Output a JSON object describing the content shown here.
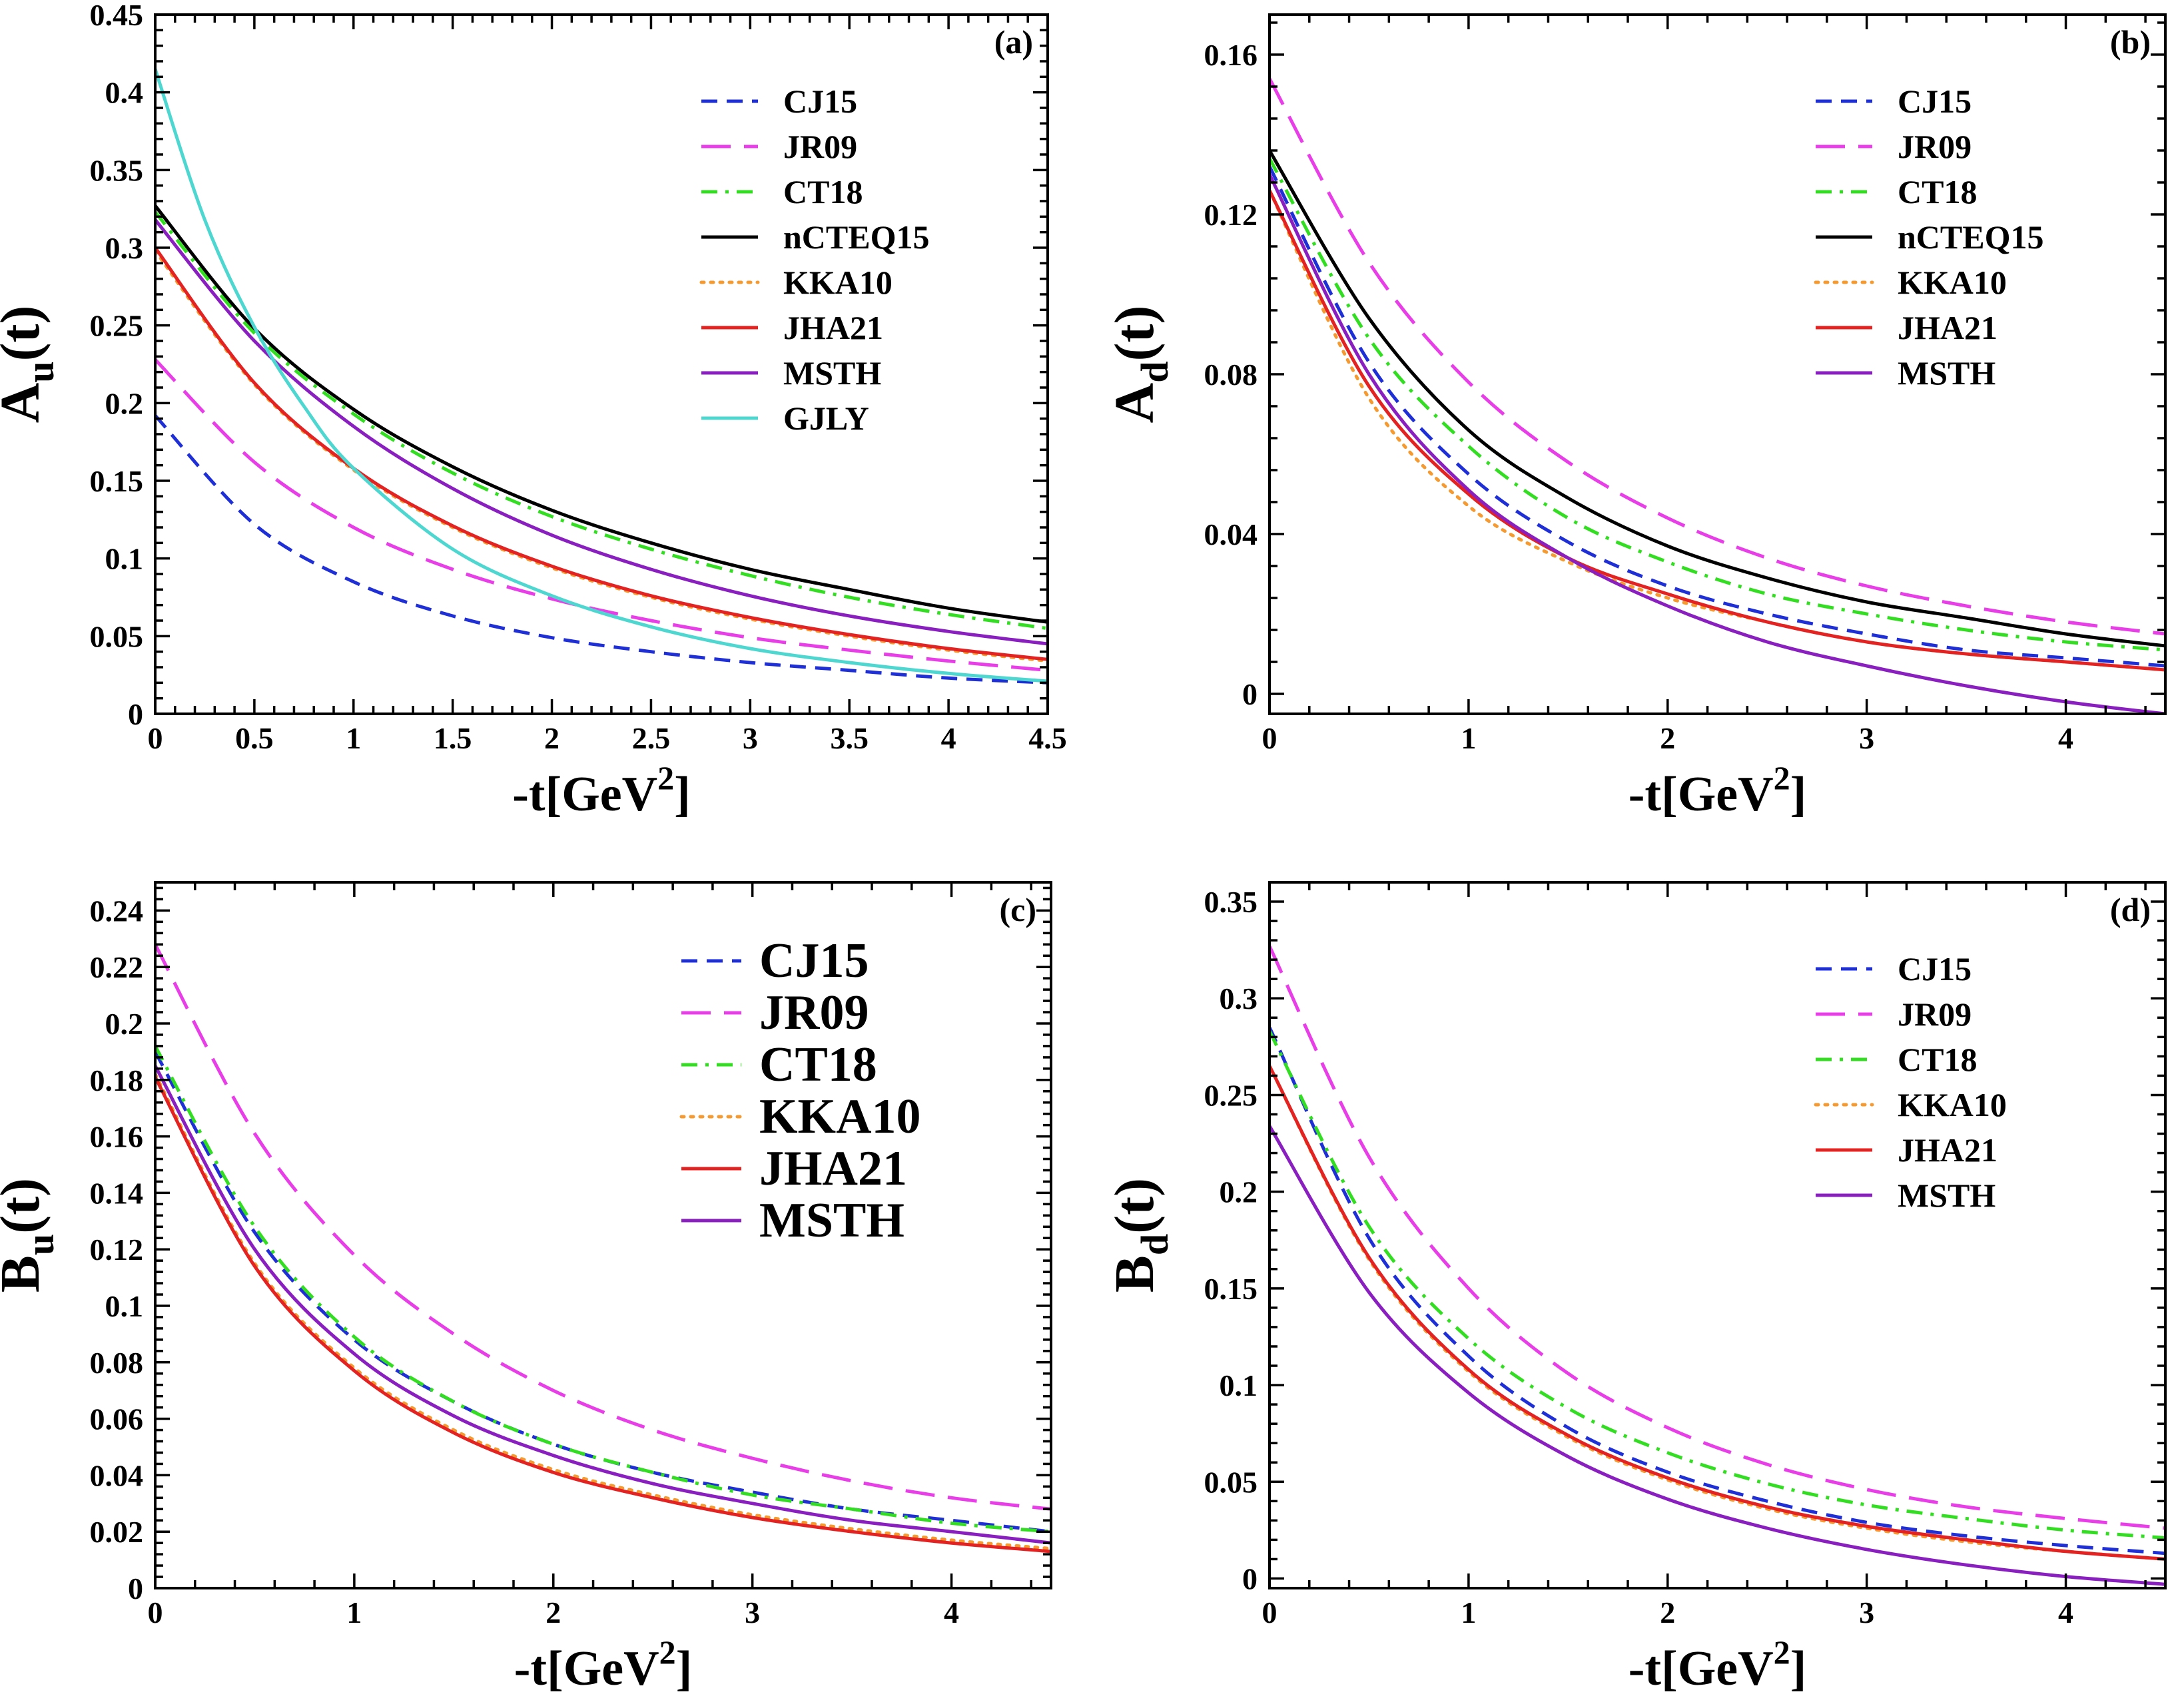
{
  "colors": {
    "CJ15": "#1f2fd6",
    "JR09": "#e83ee8",
    "CT18": "#33dd22",
    "nCTEQ15": "#000000",
    "KKA10": "#f59a30",
    "JHA21": "#e32222",
    "MSTH": "#8a1fbf",
    "GJLY": "#4ed7d0"
  },
  "chart_data": [
    {
      "type": "line",
      "panel_tag": "(a)",
      "ylabel": {
        "main": "A",
        "sub": "u",
        "tail": "(t)"
      },
      "xlabel": {
        "main": "-t[GeV",
        "sup": "2",
        "tail": "]"
      },
      "xlim": [
        0,
        4.5
      ],
      "ylim": [
        0,
        0.45
      ],
      "xticks": [
        0,
        0.5,
        1,
        1.5,
        2,
        2.5,
        3,
        3.5,
        4,
        4.5
      ],
      "xtick_labels": [
        "0",
        "0.5",
        "1",
        "1.5",
        "2",
        "2.5",
        "3",
        "3.5",
        "4",
        "4.5"
      ],
      "yticks": [
        0,
        0.05,
        0.1,
        0.15,
        0.2,
        0.25,
        0.3,
        0.35,
        0.4,
        0.45
      ],
      "ytick_labels": [
        "0",
        "0.05",
        "0.1",
        "0.15",
        "0.2",
        "0.25",
        "0.3",
        "0.35",
        "0.4",
        "0.45"
      ],
      "legend": {
        "position": "top-right",
        "size": "normal"
      },
      "series": [
        {
          "name": "CJ15",
          "style": "dash",
          "x": [
            0,
            0.5,
            1,
            1.5,
            2,
            2.5,
            3,
            3.5,
            4,
            4.5
          ],
          "y": [
            0.192,
            0.122,
            0.085,
            0.063,
            0.049,
            0.04,
            0.033,
            0.028,
            0.023,
            0.02
          ]
        },
        {
          "name": "JR09",
          "style": "longdash",
          "x": [
            0,
            0.5,
            1,
            1.5,
            2,
            2.5,
            3,
            3.5,
            4,
            4.5
          ],
          "y": [
            0.228,
            0.162,
            0.12,
            0.093,
            0.074,
            0.06,
            0.049,
            0.041,
            0.034,
            0.028
          ]
        },
        {
          "name": "CT18",
          "style": "dashdot",
          "x": [
            0,
            0.5,
            1,
            1.5,
            2,
            2.5,
            3,
            3.5,
            4,
            4.5
          ],
          "y": [
            0.323,
            0.245,
            0.193,
            0.155,
            0.127,
            0.106,
            0.089,
            0.075,
            0.064,
            0.055
          ]
        },
        {
          "name": "nCTEQ15",
          "style": "solid",
          "x": [
            0,
            0.5,
            1,
            1.5,
            2,
            2.5,
            3,
            3.5,
            4,
            4.5
          ],
          "y": [
            0.327,
            0.248,
            0.196,
            0.159,
            0.131,
            0.11,
            0.093,
            0.08,
            0.068,
            0.059
          ]
        },
        {
          "name": "KKA10",
          "style": "dot",
          "x": [
            0,
            0.5,
            1,
            1.5,
            2,
            2.5,
            3,
            3.5,
            4,
            4.5
          ],
          "y": [
            0.298,
            0.212,
            0.157,
            0.12,
            0.094,
            0.075,
            0.061,
            0.05,
            0.041,
            0.034
          ]
        },
        {
          "name": "JHA21",
          "style": "solid",
          "x": [
            0,
            0.5,
            1,
            1.5,
            2,
            2.5,
            3,
            3.5,
            4,
            4.5
          ],
          "y": [
            0.3,
            0.213,
            0.158,
            0.121,
            0.095,
            0.076,
            0.062,
            0.051,
            0.042,
            0.035
          ]
        },
        {
          "name": "MSTH",
          "style": "solid",
          "x": [
            0,
            0.5,
            1,
            1.5,
            2,
            2.5,
            3,
            3.5,
            4,
            4.5
          ],
          "y": [
            0.318,
            0.24,
            0.185,
            0.145,
            0.115,
            0.093,
            0.076,
            0.063,
            0.053,
            0.045
          ]
        },
        {
          "name": "GJLY",
          "style": "solid",
          "x": [
            0,
            0.25,
            0.5,
            0.75,
            1,
            1.5,
            2,
            2.5,
            3,
            3.5,
            4,
            4.5
          ],
          "y": [
            0.415,
            0.318,
            0.249,
            0.198,
            0.158,
            0.106,
            0.076,
            0.056,
            0.042,
            0.033,
            0.026,
            0.021
          ]
        }
      ]
    },
    {
      "type": "line",
      "panel_tag": "(b)",
      "ylabel": {
        "main": "A",
        "sub": "d",
        "tail": "(t)"
      },
      "xlabel": {
        "main": "-t[GeV",
        "sup": "2",
        "tail": "]"
      },
      "xlim": [
        0,
        4.5
      ],
      "ylim": [
        -0.005,
        0.17
      ],
      "xticks": [
        0,
        1,
        2,
        3,
        4
      ],
      "xtick_labels": [
        "0",
        "1",
        "2",
        "3",
        "4"
      ],
      "yticks": [
        0,
        0.04,
        0.08,
        0.12,
        0.16
      ],
      "ytick_labels": [
        "0",
        "0.04",
        "0.08",
        "0.12",
        "0.16"
      ],
      "legend": {
        "position": "top-right",
        "size": "normal"
      },
      "series": [
        {
          "name": "CJ15",
          "style": "dash",
          "x": [
            0,
            0.5,
            1,
            1.5,
            2,
            2.5,
            3,
            3.5,
            4,
            4.5
          ],
          "y": [
            0.132,
            0.083,
            0.055,
            0.038,
            0.027,
            0.02,
            0.015,
            0.011,
            0.009,
            0.007
          ]
        },
        {
          "name": "JR09",
          "style": "longdash",
          "x": [
            0,
            0.5,
            1,
            1.5,
            2,
            2.5,
            3,
            3.5,
            4,
            4.5
          ],
          "y": [
            0.154,
            0.108,
            0.078,
            0.058,
            0.044,
            0.034,
            0.027,
            0.022,
            0.018,
            0.015
          ]
        },
        {
          "name": "CT18",
          "style": "dashdot",
          "x": [
            0,
            0.5,
            1,
            1.5,
            2,
            2.5,
            3,
            3.5,
            4,
            4.5
          ],
          "y": [
            0.134,
            0.089,
            0.062,
            0.044,
            0.033,
            0.025,
            0.02,
            0.016,
            0.013,
            0.011
          ]
        },
        {
          "name": "nCTEQ15",
          "style": "solid",
          "x": [
            0,
            0.5,
            1,
            1.5,
            2,
            2.5,
            3,
            3.5,
            4,
            4.5
          ],
          "y": [
            0.136,
            0.094,
            0.066,
            0.049,
            0.037,
            0.029,
            0.023,
            0.019,
            0.015,
            0.012
          ]
        },
        {
          "name": "KKA10",
          "style": "dot",
          "x": [
            0,
            0.5,
            1,
            1.5,
            2,
            2.5,
            3,
            3.5,
            4,
            4.5
          ],
          "y": [
            0.126,
            0.074,
            0.047,
            0.033,
            0.024,
            0.018,
            0.013,
            0.01,
            0.008,
            0.006
          ]
        },
        {
          "name": "JHA21",
          "style": "solid",
          "x": [
            0,
            0.5,
            1,
            1.5,
            2,
            2.5,
            3,
            3.5,
            4,
            4.5
          ],
          "y": [
            0.126,
            0.077,
            0.05,
            0.034,
            0.025,
            0.018,
            0.013,
            0.01,
            0.008,
            0.006
          ]
        },
        {
          "name": "MSTH",
          "style": "solid",
          "x": [
            0,
            0.5,
            1,
            1.5,
            2,
            2.5,
            3,
            3.5,
            4,
            4.5
          ],
          "y": [
            0.13,
            0.08,
            0.051,
            0.034,
            0.022,
            0.013,
            0.007,
            0.002,
            -0.002,
            -0.005
          ]
        }
      ]
    },
    {
      "type": "line",
      "panel_tag": "(c)",
      "ylabel": {
        "main": "B",
        "sub": "u",
        "tail": "(t)"
      },
      "xlabel": {
        "main": "-t[GeV",
        "sup": "2",
        "tail": "]"
      },
      "xlim": [
        0,
        4.5
      ],
      "ylim": [
        0,
        0.25
      ],
      "xticks": [
        0,
        1,
        2,
        3,
        4
      ],
      "xtick_labels": [
        "0",
        "1",
        "2",
        "3",
        "4"
      ],
      "yticks": [
        0,
        0.02,
        0.04,
        0.06,
        0.08,
        0.1,
        0.12,
        0.14,
        0.16,
        0.18,
        0.2,
        0.22,
        0.24
      ],
      "ytick_labels": [
        "0",
        "0.02",
        "0.04",
        "0.06",
        "0.08",
        "0.1",
        "0.12",
        "0.14",
        "0.16",
        "0.18",
        "0.2",
        "0.22",
        "0.24"
      ],
      "legend": {
        "position": "top-right",
        "size": "large"
      },
      "series": [
        {
          "name": "CJ15",
          "style": "dash",
          "x": [
            0,
            0.5,
            1,
            1.5,
            2,
            2.5,
            3,
            3.5,
            4,
            4.5
          ],
          "y": [
            0.19,
            0.126,
            0.088,
            0.066,
            0.051,
            0.041,
            0.034,
            0.028,
            0.024,
            0.02
          ]
        },
        {
          "name": "JR09",
          "style": "longdash",
          "x": [
            0,
            0.5,
            1,
            1.5,
            2,
            2.5,
            3,
            3.5,
            4,
            4.5
          ],
          "y": [
            0.228,
            0.161,
            0.118,
            0.09,
            0.07,
            0.056,
            0.046,
            0.038,
            0.032,
            0.028
          ]
        },
        {
          "name": "CT18",
          "style": "dashdot",
          "x": [
            0,
            0.5,
            1,
            1.5,
            2,
            2.5,
            3,
            3.5,
            4,
            4.5
          ],
          "y": [
            0.192,
            0.128,
            0.089,
            0.066,
            0.051,
            0.041,
            0.033,
            0.028,
            0.023,
            0.02
          ]
        },
        {
          "name": "KKA10",
          "style": "dot",
          "x": [
            0,
            0.5,
            1,
            1.5,
            2,
            2.5,
            3,
            3.5,
            4,
            4.5
          ],
          "y": [
            0.182,
            0.115,
            0.078,
            0.056,
            0.042,
            0.033,
            0.026,
            0.021,
            0.017,
            0.014
          ]
        },
        {
          "name": "JHA21",
          "style": "solid",
          "x": [
            0,
            0.5,
            1,
            1.5,
            2,
            2.5,
            3,
            3.5,
            4,
            4.5
          ],
          "y": [
            0.181,
            0.114,
            0.077,
            0.055,
            0.041,
            0.032,
            0.025,
            0.02,
            0.016,
            0.013
          ]
        },
        {
          "name": "MSTH",
          "style": "solid",
          "x": [
            0,
            0.5,
            1,
            1.5,
            2,
            2.5,
            3,
            3.5,
            4,
            4.5
          ],
          "y": [
            0.185,
            0.12,
            0.083,
            0.061,
            0.047,
            0.037,
            0.03,
            0.024,
            0.02,
            0.016
          ]
        }
      ]
    },
    {
      "type": "line",
      "panel_tag": "(d)",
      "ylabel": {
        "main": "B",
        "sub": "d",
        "tail": "(t)"
      },
      "xlabel": {
        "main": "-t[GeV",
        "sup": "2",
        "tail": "]"
      },
      "xlim": [
        0,
        4.5
      ],
      "ylim": [
        -0.005,
        0.36
      ],
      "xticks": [
        0,
        1,
        2,
        3,
        4
      ],
      "xtick_labels": [
        "0",
        "1",
        "2",
        "3",
        "4"
      ],
      "yticks": [
        0,
        0.05,
        0.1,
        0.15,
        0.2,
        0.25,
        0.3,
        0.35
      ],
      "ytick_labels": [
        "0",
        "0.05",
        "0.1",
        "0.15",
        "0.2",
        "0.25",
        "0.3",
        "0.35"
      ],
      "legend": {
        "position": "top-right",
        "size": "normal"
      },
      "series": [
        {
          "name": "CJ15",
          "style": "dash",
          "x": [
            0,
            0.5,
            1,
            1.5,
            2,
            2.5,
            3,
            3.5,
            4,
            4.5
          ],
          "y": [
            0.285,
            0.176,
            0.115,
            0.078,
            0.055,
            0.04,
            0.029,
            0.022,
            0.017,
            0.013
          ]
        },
        {
          "name": "JR09",
          "style": "longdash",
          "x": [
            0,
            0.5,
            1,
            1.5,
            2,
            2.5,
            3,
            3.5,
            4,
            4.5
          ],
          "y": [
            0.327,
            0.218,
            0.15,
            0.106,
            0.078,
            0.059,
            0.046,
            0.037,
            0.031,
            0.026
          ]
        },
        {
          "name": "CT18",
          "style": "dashdot",
          "x": [
            0,
            0.5,
            1,
            1.5,
            2,
            2.5,
            3,
            3.5,
            4,
            4.5
          ],
          "y": [
            0.283,
            0.182,
            0.124,
            0.088,
            0.065,
            0.049,
            0.038,
            0.031,
            0.025,
            0.021
          ]
        },
        {
          "name": "KKA10",
          "style": "dot",
          "x": [
            0,
            0.5,
            1,
            1.5,
            2,
            2.5,
            3,
            3.5,
            4,
            4.5
          ],
          "y": [
            0.265,
            0.165,
            0.107,
            0.073,
            0.051,
            0.036,
            0.026,
            0.019,
            0.014,
            0.01
          ]
        },
        {
          "name": "JHA21",
          "style": "solid",
          "x": [
            0,
            0.5,
            1,
            1.5,
            2,
            2.5,
            3,
            3.5,
            4,
            4.5
          ],
          "y": [
            0.265,
            0.166,
            0.108,
            0.074,
            0.052,
            0.037,
            0.027,
            0.02,
            0.014,
            0.01
          ]
        },
        {
          "name": "MSTH",
          "style": "solid",
          "x": [
            0,
            0.5,
            1,
            1.5,
            2,
            2.5,
            3,
            3.5,
            4,
            4.5
          ],
          "y": [
            0.234,
            0.148,
            0.096,
            0.063,
            0.041,
            0.026,
            0.015,
            0.007,
            0.001,
            -0.003
          ]
        }
      ]
    }
  ]
}
